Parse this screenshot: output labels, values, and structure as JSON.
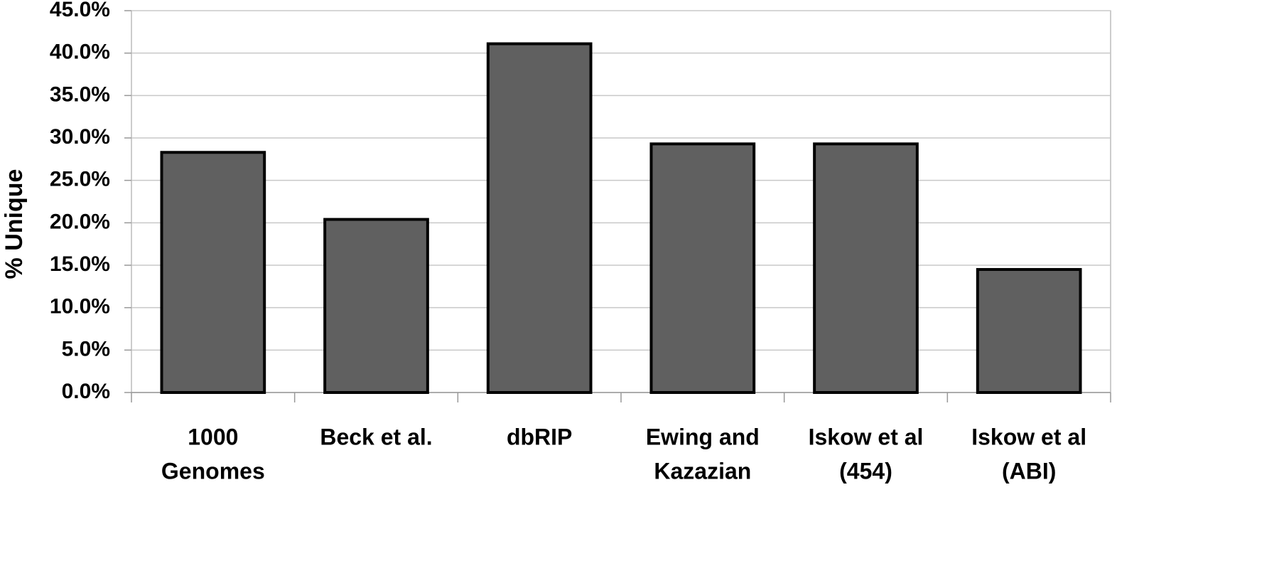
{
  "chart_data": {
    "type": "bar",
    "y_label": "% Unique",
    "categories": [
      [
        "1000",
        "Genomes"
      ],
      [
        "Beck et al."
      ],
      [
        "dbRIP"
      ],
      [
        "Ewing and",
        "Kazazian"
      ],
      [
        "Iskow et al",
        "(454)"
      ],
      [
        "Iskow et al",
        "(ABI)"
      ]
    ],
    "values": [
      28.3,
      20.4,
      41.1,
      29.3,
      29.3,
      14.5
    ],
    "color": "#606060",
    "ylim": [
      0,
      45
    ],
    "yticks": [
      {
        "value": 0,
        "label": "0.0%"
      },
      {
        "value": 5,
        "label": "5.0%"
      },
      {
        "value": 10,
        "label": "10.0%"
      },
      {
        "value": 15,
        "label": "15.0%"
      },
      {
        "value": 20,
        "label": "20.0%"
      },
      {
        "value": 25,
        "label": "25.0%"
      },
      {
        "value": 30,
        "label": "30.0%"
      },
      {
        "value": 35,
        "label": "35.0%"
      },
      {
        "value": 40,
        "label": "40.0%"
      },
      {
        "value": 45,
        "label": "45.0%"
      }
    ],
    "grid": true
  }
}
